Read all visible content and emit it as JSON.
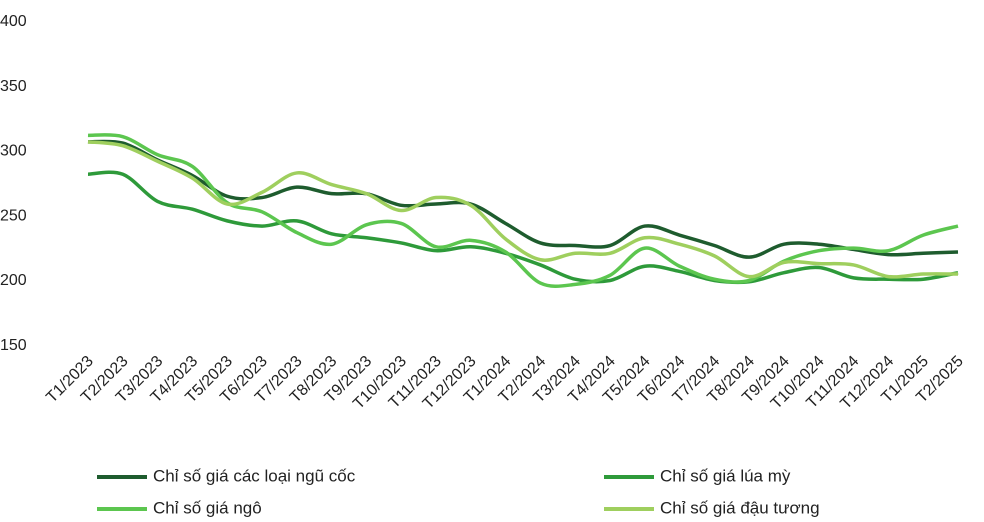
{
  "chart_data": {
    "type": "line",
    "categories": [
      "T1/2023",
      "T2/2023",
      "T3/2023",
      "T4/2023",
      "T5/2023",
      "T6/2023",
      "T7/2023",
      "T8/2023",
      "T9/2023",
      "T10/2023",
      "T11/2023",
      "T12/2023",
      "T1/2024",
      "T2/2024",
      "T3/2024",
      "T4/2024",
      "T5/2024",
      "T6/2024",
      "T7/2024",
      "T8/2024",
      "T9/2024",
      "T10/2024",
      "T11/2024",
      "T12/2024",
      "T1/2025",
      "T2/2025"
    ],
    "series": [
      {
        "name": "Chỉ số giá các loại ngũ cốc",
        "color": "#1e5c2e",
        "values": [
          306,
          305,
          292,
          280,
          264,
          263,
          271,
          266,
          266,
          257,
          258,
          258,
          243,
          228,
          226,
          226,
          241,
          234,
          226,
          217,
          227,
          227,
          223,
          219,
          220,
          221
        ]
      },
      {
        "name": "Chỉ số giá lúa mỳ",
        "color": "#2e9a3a",
        "values": [
          281,
          281,
          260,
          254,
          245,
          241,
          245,
          235,
          232,
          228,
          222,
          225,
          220,
          211,
          200,
          199,
          210,
          206,
          199,
          198,
          205,
          209,
          201,
          200,
          200,
          205
        ]
      },
      {
        "name": "Chỉ số giá ngô",
        "color": "#5cc64f",
        "values": [
          311,
          310,
          296,
          287,
          259,
          252,
          236,
          227,
          242,
          243,
          225,
          230,
          221,
          197,
          196,
          203,
          224,
          210,
          200,
          199,
          214,
          222,
          224,
          222,
          234,
          241
        ]
      },
      {
        "name": "Chỉ số giá đậu tương",
        "color": "#9fcf5e",
        "values": [
          306,
          303,
          291,
          278,
          258,
          267,
          282,
          273,
          266,
          253,
          263,
          257,
          231,
          215,
          220,
          220,
          232,
          227,
          218,
          202,
          213,
          212,
          211,
          202,
          204,
          204
        ]
      }
    ],
    "ylim": [
      150,
      400
    ],
    "yticks": [
      150,
      200,
      250,
      300,
      350,
      400
    ],
    "grid": false
  }
}
